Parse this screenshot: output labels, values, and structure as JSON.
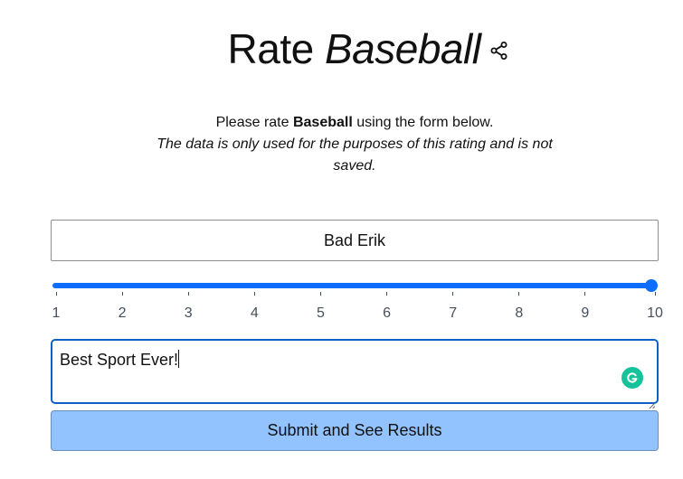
{
  "header": {
    "title_prefix": "Rate",
    "title_subject": "Baseball",
    "share_icon": "share-icon"
  },
  "intro": {
    "lead": "Please rate ",
    "subject": "Baseball",
    "tail": " using the form below.",
    "note": "The data is only used for the purposes of this rating and is not saved."
  },
  "form": {
    "name_value": "Bad Erik",
    "rating": {
      "min": 1,
      "max": 10,
      "value": 10,
      "tick_labels": [
        "1",
        "2",
        "3",
        "4",
        "5",
        "6",
        "7",
        "8",
        "9",
        "10"
      ]
    },
    "comment_value": "Best Sport Ever!",
    "submit_label": "Submit and See Results"
  },
  "colors": {
    "accent": "#0d6efd",
    "submit_bg": "#92c3fe",
    "grammarly": "#15c39a"
  }
}
